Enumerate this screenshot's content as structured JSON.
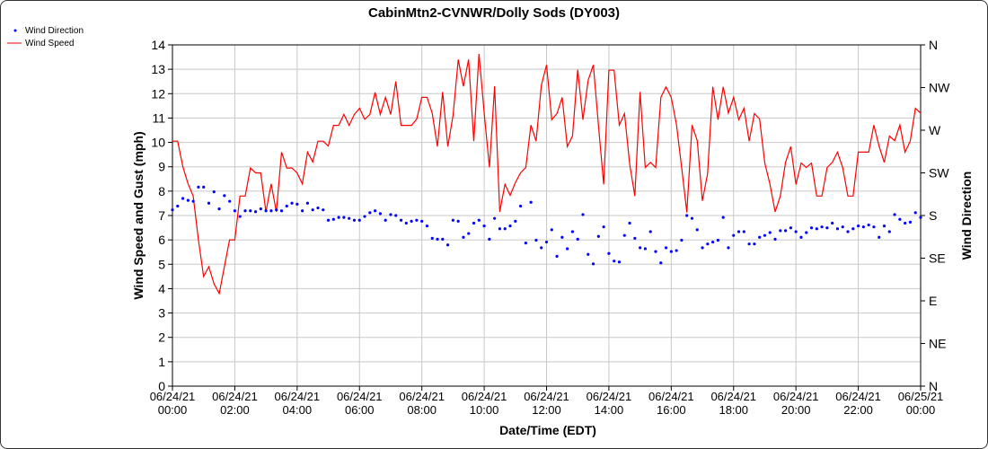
{
  "chart_data": {
    "type": "line",
    "title": "CabinMtn2-CVNWR/Dolly Sods (DY003)",
    "xlabel": "Date/Time (EDT)",
    "ylabel": "Wind Speed and Gust (mph)",
    "y2label": "Wind Direction",
    "ylim": [
      0,
      14
    ],
    "y2lim": [
      0,
      360
    ],
    "xlim_minutes": [
      0,
      1440
    ],
    "grid": true,
    "legend_position": "top-left",
    "yticks": [
      "0",
      "1",
      "2",
      "3",
      "4",
      "5",
      "6",
      "7",
      "8",
      "9",
      "10",
      "11",
      "12",
      "13",
      "14"
    ],
    "y2ticks": [
      "N",
      "NE",
      "E",
      "SE",
      "S",
      "SW",
      "W",
      "NW",
      "N"
    ],
    "xticks": [
      [
        "06/24/21",
        "00:00"
      ],
      [
        "06/24/21",
        "02:00"
      ],
      [
        "06/24/21",
        "04:00"
      ],
      [
        "06/24/21",
        "06:00"
      ],
      [
        "06/24/21",
        "08:00"
      ],
      [
        "06/24/21",
        "10:00"
      ],
      [
        "06/24/21",
        "12:00"
      ],
      [
        "06/24/21",
        "14:00"
      ],
      [
        "06/24/21",
        "16:00"
      ],
      [
        "06/24/21",
        "18:00"
      ],
      [
        "06/24/21",
        "20:00"
      ],
      [
        "06/24/21",
        "22:00"
      ],
      [
        "06/25/21",
        "00:00"
      ]
    ],
    "x_interval_minutes": 10,
    "series": [
      {
        "name": "Wind Direction",
        "type": "scatter",
        "axis": "right",
        "unit": "degrees",
        "color": "#0000ff",
        "values": [
          186,
          190,
          198,
          196,
          195,
          210,
          210,
          193,
          205,
          187,
          201,
          195,
          185,
          179,
          185,
          185,
          184,
          187,
          185,
          185,
          186,
          185,
          190,
          193,
          192,
          185,
          193,
          186,
          188,
          186,
          175,
          176,
          178,
          178,
          177,
          175,
          175,
          179,
          183,
          185,
          182,
          175,
          181,
          180,
          175,
          172,
          174,
          175,
          174,
          169,
          156,
          155,
          155,
          149,
          175,
          174,
          157,
          161,
          172,
          175,
          169,
          155,
          177,
          166,
          166,
          169,
          174,
          190,
          151,
          194,
          154,
          146,
          152,
          165,
          137,
          157,
          145,
          163,
          155,
          181,
          139,
          129,
          158,
          168,
          140,
          132,
          131,
          159,
          172,
          156,
          146,
          145,
          163,
          142,
          130,
          146,
          142,
          143,
          154,
          180,
          177,
          165,
          146,
          150,
          152,
          154,
          178,
          146,
          159,
          163,
          163,
          150,
          150,
          157,
          159,
          162,
          155,
          164,
          164,
          167,
          163,
          157,
          162,
          167,
          166,
          168,
          167,
          172,
          166,
          168,
          163,
          166,
          169,
          168,
          170,
          168,
          157,
          169,
          163,
          181,
          176,
          172,
          173,
          183,
          178
        ]
      },
      {
        "name": "Wind Speed",
        "type": "line",
        "axis": "left",
        "unit": "mph",
        "color": "#ff0000",
        "values": [
          10.05,
          10.05,
          9.0,
          8.3,
          7.8,
          6.0,
          4.5,
          4.9,
          4.2,
          3.8,
          4.9,
          6.0,
          6.0,
          7.8,
          7.8,
          8.95,
          8.75,
          8.75,
          7.15,
          8.3,
          7.15,
          9.6,
          8.95,
          8.95,
          8.75,
          8.3,
          9.6,
          9.2,
          10.05,
          10.05,
          9.85,
          10.7,
          10.7,
          11.15,
          10.7,
          11.15,
          11.4,
          10.95,
          11.15,
          12.05,
          11.15,
          11.85,
          11.15,
          12.5,
          10.7,
          10.7,
          10.7,
          10.95,
          11.85,
          11.85,
          11.2,
          9.83,
          12.07,
          9.83,
          11.1,
          13.4,
          12.3,
          13.4,
          10.05,
          13.63,
          11.2,
          8.97,
          12.3,
          7.15,
          8.28,
          7.83,
          8.35,
          8.75,
          8.97,
          10.71,
          10.05,
          12.34,
          13.18,
          10.93,
          11.18,
          11.85,
          9.83,
          10.26,
          12.98,
          10.93,
          12.55,
          13.18,
          10.7,
          8.28,
          12.96,
          12.96,
          10.71,
          11.18,
          9.1,
          7.8,
          12.07,
          8.97,
          9.18,
          8.97,
          11.85,
          12.28,
          11.85,
          10.75,
          8.97,
          7.13,
          10.71,
          10.07,
          7.6,
          8.72,
          12.28,
          10.93,
          12.28,
          11.2,
          11.85,
          10.93,
          11.4,
          10.05,
          11.18,
          10.96,
          9.15,
          8.29,
          7.15,
          7.8,
          9.18,
          9.83,
          8.28,
          9.15,
          8.97,
          9.15,
          7.8,
          7.8,
          8.97,
          9.18,
          9.6,
          8.97,
          7.8,
          7.8,
          9.6,
          9.6,
          9.6,
          10.71,
          9.85,
          9.18,
          10.26,
          10.07,
          10.71,
          9.6,
          10.05,
          11.4,
          11.2
        ]
      }
    ]
  }
}
